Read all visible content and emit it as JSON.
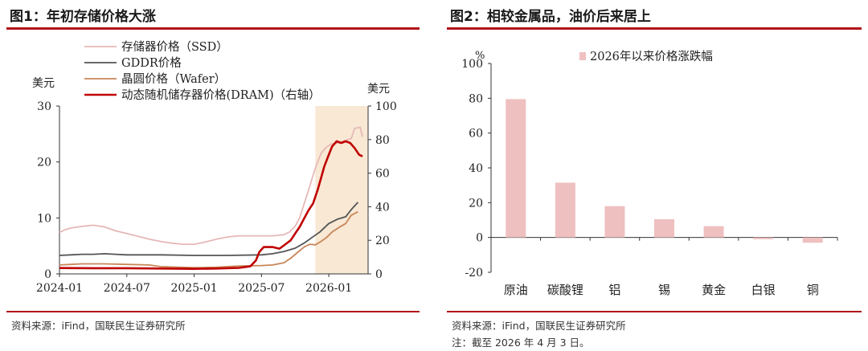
{
  "chart_data": [
    {
      "type": "line",
      "title": "图1：年初存储价格大涨",
      "source": "资料来源：iFind，国联民生证券研究所",
      "left_axis_unit": "美元",
      "right_axis_unit": "美元",
      "left_ylim": [
        0,
        30
      ],
      "right_ylim": [
        0,
        100
      ],
      "left_ticks": [
        0,
        10,
        20,
        30
      ],
      "right_ticks": [
        0,
        20,
        40,
        60,
        80,
        100
      ],
      "x_range": [
        0,
        27.5
      ],
      "x_tick_labels": [
        "2024-01",
        "2024-07",
        "2025-01",
        "2025-07",
        "2026-01"
      ],
      "x_tick_positions": [
        0,
        6,
        12,
        18,
        24
      ],
      "shade_range": [
        22.8,
        27.5
      ],
      "shade_color": "#f8e8d4",
      "series": [
        {
          "name": "存储器价格（SSD）",
          "axis": "left",
          "color": "#e6b8b8",
          "width": 1.8,
          "points": [
            [
              0,
              7.4
            ],
            [
              0.5,
              7.9
            ],
            [
              1,
              8.2
            ],
            [
              2,
              8.5
            ],
            [
              3,
              8.7
            ],
            [
              4,
              8.4
            ],
            [
              5,
              7.7
            ],
            [
              6,
              7.2
            ],
            [
              7,
              6.7
            ],
            [
              8,
              6.2
            ],
            [
              9,
              5.8
            ],
            [
              10,
              5.5
            ],
            [
              11,
              5.3
            ],
            [
              12,
              5.3
            ],
            [
              13,
              5.7
            ],
            [
              14,
              6.2
            ],
            [
              15,
              6.6
            ],
            [
              16,
              6.8
            ],
            [
              17,
              6.8
            ],
            [
              18,
              6.8
            ],
            [
              19,
              6.8
            ],
            [
              20,
              7.0
            ],
            [
              20.5,
              7.5
            ],
            [
              21,
              8.5
            ],
            [
              21.4,
              10
            ],
            [
              21.8,
              12.5
            ],
            [
              22.2,
              15
            ],
            [
              22.5,
              17
            ],
            [
              22.9,
              19.5
            ],
            [
              23.3,
              21.5
            ],
            [
              23.7,
              22.5
            ],
            [
              24.2,
              23.2
            ],
            [
              24.8,
              23.4
            ],
            [
              25.4,
              23.8
            ],
            [
              26,
              24.2
            ],
            [
              26.3,
              26
            ],
            [
              26.8,
              26.2
            ],
            [
              27,
              24.5
            ]
          ]
        },
        {
          "name": "GDDR价格",
          "axis": "left",
          "color": "#555555",
          "width": 1.8,
          "points": [
            [
              0,
              3.3
            ],
            [
              1,
              3.4
            ],
            [
              2,
              3.5
            ],
            [
              3,
              3.5
            ],
            [
              4,
              3.6
            ],
            [
              5,
              3.5
            ],
            [
              6,
              3.4
            ],
            [
              9,
              3.4
            ],
            [
              12,
              3.3
            ],
            [
              15,
              3.3
            ],
            [
              18,
              3.4
            ],
            [
              19,
              3.6
            ],
            [
              20,
              4.0
            ],
            [
              21,
              4.6
            ],
            [
              21.8,
              5.5
            ],
            [
              22.5,
              6.5
            ],
            [
              23.2,
              7.5
            ],
            [
              24,
              9.0
            ],
            [
              24.8,
              9.8
            ],
            [
              25.5,
              10.2
            ],
            [
              26,
              11.5
            ],
            [
              26.6,
              12.8
            ]
          ]
        },
        {
          "name": "晶圆价格（Wafer）",
          "axis": "left",
          "color": "#c88658",
          "width": 1.8,
          "points": [
            [
              0,
              1.6
            ],
            [
              1,
              1.7
            ],
            [
              2,
              1.8
            ],
            [
              4,
              1.8
            ],
            [
              6,
              1.7
            ],
            [
              8,
              1.6
            ],
            [
              9,
              1.3
            ],
            [
              12,
              1.1
            ],
            [
              14,
              1.2
            ],
            [
              16,
              1.4
            ],
            [
              18,
              1.5
            ],
            [
              19,
              1.6
            ],
            [
              20,
              2.0
            ],
            [
              20.6,
              2.8
            ],
            [
              21.2,
              3.8
            ],
            [
              21.8,
              4.8
            ],
            [
              22.3,
              5.3
            ],
            [
              22.8,
              5.2
            ],
            [
              23.3,
              5.8
            ],
            [
              23.8,
              6.5
            ],
            [
              24.3,
              7.5
            ],
            [
              24.9,
              8.3
            ],
            [
              25.5,
              9.0
            ],
            [
              26,
              10.5
            ],
            [
              26.6,
              11.1
            ]
          ]
        },
        {
          "name": "动态随机储存器价格(DRAM)（右轴）",
          "axis": "right",
          "color": "#c00000",
          "width": 2.6,
          "points": [
            [
              0,
              3.5
            ],
            [
              3,
              3.4
            ],
            [
              6,
              3.4
            ],
            [
              9,
              3.2
            ],
            [
              12,
              3.0
            ],
            [
              14,
              3.2
            ],
            [
              16,
              3.6
            ],
            [
              17,
              4.5
            ],
            [
              17.5,
              8
            ],
            [
              17.8,
              13
            ],
            [
              18.2,
              16
            ],
            [
              19,
              16
            ],
            [
              19.6,
              15
            ],
            [
              20,
              17
            ],
            [
              20.6,
              20
            ],
            [
              21,
              24
            ],
            [
              21.4,
              28
            ],
            [
              21.8,
              33
            ],
            [
              22.2,
              38
            ],
            [
              22.6,
              42
            ],
            [
              23,
              50
            ],
            [
              23.3,
              57
            ],
            [
              23.6,
              64
            ],
            [
              24,
              71
            ],
            [
              24.3,
              76
            ],
            [
              24.7,
              79
            ],
            [
              25.1,
              78
            ],
            [
              25.5,
              79
            ],
            [
              25.9,
              78
            ],
            [
              26.3,
              75
            ],
            [
              26.7,
              71
            ],
            [
              27,
              70
            ]
          ]
        }
      ]
    },
    {
      "type": "bar",
      "title": "图2：相较金属品，油价后来居上",
      "source": "资料来源：iFind，国联民生证券研究所",
      "note": "注：截至 2026 年 4 月 3 日。",
      "unit": "%",
      "legend": "2026年以来价格涨跌幅",
      "color": "#efc0c0",
      "ylim": [
        -20,
        100
      ],
      "yticks": [
        -20,
        0,
        20,
        40,
        60,
        80,
        100
      ],
      "categories": [
        "原油",
        "碳酸锂",
        "铝",
        "锡",
        "黄金",
        "白银",
        "铜"
      ],
      "values": [
        79.5,
        31.5,
        18,
        10.5,
        6.5,
        -1,
        -3
      ]
    }
  ]
}
